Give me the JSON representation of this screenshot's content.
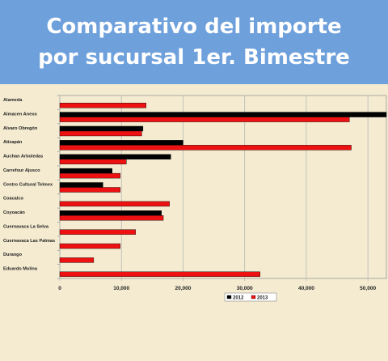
{
  "title": {
    "line1": "Comparativo del importe",
    "line2": "por sucursal 1er. Bimestre"
  },
  "colors": {
    "banner": "#6ea0dc",
    "background": "#f4ebd0",
    "series_2012": "#000000",
    "series_2013": "#ee1111",
    "grid": "#b8b8b8"
  },
  "chart_data": {
    "type": "bar",
    "orientation": "horizontal",
    "categories": [
      "Alameda",
      "Almacen Anexo",
      "Alvaro Obregón",
      "Atizapán",
      "Auchan Arboledas",
      "Carrefour Ajusco",
      "Centro Cultural Telmex",
      "Coacalco",
      "Coyoacán",
      "Cuernavaca La Selva",
      "Cuernavaca Las Palmas",
      "Durango",
      "Eduardo Molina"
    ],
    "series": [
      {
        "name": "2012",
        "values": [
          0,
          53000,
          13500,
          20000,
          18000,
          8500,
          7000,
          0,
          16500,
          0,
          0,
          0,
          0
        ]
      },
      {
        "name": "2013",
        "values": [
          14000,
          47000,
          13300,
          47300,
          10800,
          9800,
          9800,
          17800,
          16800,
          12300,
          9800,
          5500,
          32500
        ]
      }
    ],
    "xlim": [
      0,
      53000
    ],
    "xticks": [
      0,
      10000,
      20000,
      30000,
      40000,
      50000
    ],
    "xtick_labels": [
      "0",
      "10,000",
      "20,000",
      "30,000",
      "40,000",
      "50,000"
    ],
    "grid": true,
    "legend_position": "bottom-right"
  }
}
